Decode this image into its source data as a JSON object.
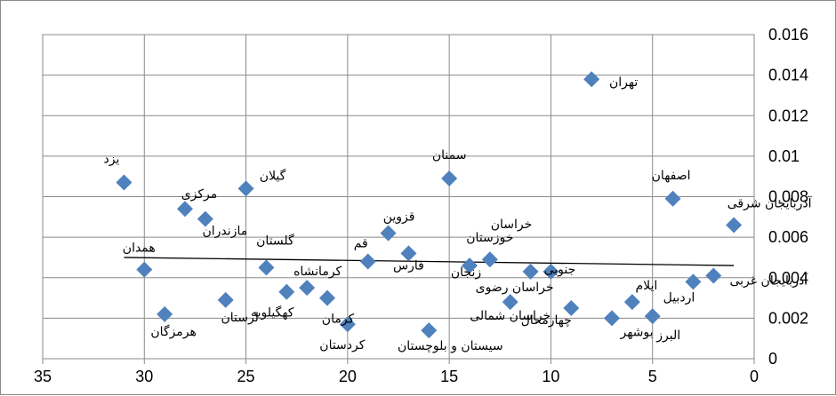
{
  "chart_data": {
    "type": "scatter",
    "title": "",
    "xlabel": "",
    "ylabel": "",
    "xlim": [
      0,
      35
    ],
    "ylim": [
      0,
      0.016
    ],
    "x_reversed": true,
    "y_axis_side": "right",
    "grid": "horizontal and vertical",
    "marker": "diamond",
    "marker_color": "#4f81bd",
    "x_ticks": [
      "0",
      "5",
      "10",
      "15",
      "20",
      "25",
      "30",
      "35"
    ],
    "y_ticks": [
      "0",
      "0.002",
      "0.004",
      "0.006",
      "0.008",
      "0.01",
      "0.012",
      "0.014",
      "0.016"
    ],
    "trendline": {
      "type": "linear",
      "x": [
        1,
        31
      ],
      "y": [
        0.0046,
        0.005
      ]
    },
    "points": [
      {
        "name": "آذربایجان شرقی",
        "x": 1,
        "y": 0.0066
      },
      {
        "name": "آذربایجان غربی",
        "x": 2,
        "y": 0.0041
      },
      {
        "name": "اردبیل",
        "x": 3,
        "y": 0.0038
      },
      {
        "name": "اصفهان",
        "x": 4,
        "y": 0.0079
      },
      {
        "name": "البرز",
        "x": 5,
        "y": 0.0021
      },
      {
        "name": "ایلام",
        "x": 6,
        "y": 0.0028
      },
      {
        "name": "بوشهر",
        "x": 7,
        "y": 0.002
      },
      {
        "name": "تهران",
        "x": 8,
        "y": 0.0138
      },
      {
        "name": "چهارمحال",
        "x": 9,
        "y": 0.0025
      },
      {
        "name": "جنوبی",
        "x": 10,
        "y": 0.0043
      },
      {
        "name": "خراسان رضوی",
        "x": 11,
        "y": 0.0043
      },
      {
        "name": "خراسان شمالی",
        "x": 12,
        "y": 0.0028
      },
      {
        "name": "خوزستان",
        "x": 13,
        "y": 0.0049
      },
      {
        "name": "زنجان",
        "x": 14,
        "y": 0.0046
      },
      {
        "name": "سمنان",
        "x": 15,
        "y": 0.0089
      },
      {
        "name": "سیستان و بلوچستان",
        "x": 16,
        "y": 0.0014
      },
      {
        "name": "فارس",
        "x": 17,
        "y": 0.0052
      },
      {
        "name": "قزوین",
        "x": 18,
        "y": 0.0062
      },
      {
        "name": "قم",
        "x": 19,
        "y": 0.0048
      },
      {
        "name": "کردستان",
        "x": 20,
        "y": 0.0017
      },
      {
        "name": "کرمان",
        "x": 21,
        "y": 0.003
      },
      {
        "name": "کرمانشاه",
        "x": 22,
        "y": 0.0035
      },
      {
        "name": "کهگیلویه",
        "x": 23,
        "y": 0.0033
      },
      {
        "name": "گلستان",
        "x": 24,
        "y": 0.0045
      },
      {
        "name": "گیلان",
        "x": 25,
        "y": 0.0084
      },
      {
        "name": "لرستان",
        "x": 26,
        "y": 0.0029
      },
      {
        "name": "مازندران",
        "x": 27,
        "y": 0.0069
      },
      {
        "name": "مرکزی",
        "x": 28,
        "y": 0.0074
      },
      {
        "name": "هرمزگان",
        "x": 29,
        "y": 0.0022
      },
      {
        "name": "همدان",
        "x": 30,
        "y": 0.0044
      },
      {
        "name": "یزد",
        "x": 31,
        "y": 0.0087
      }
    ],
    "extra_labels": [
      "خراسان"
    ]
  }
}
